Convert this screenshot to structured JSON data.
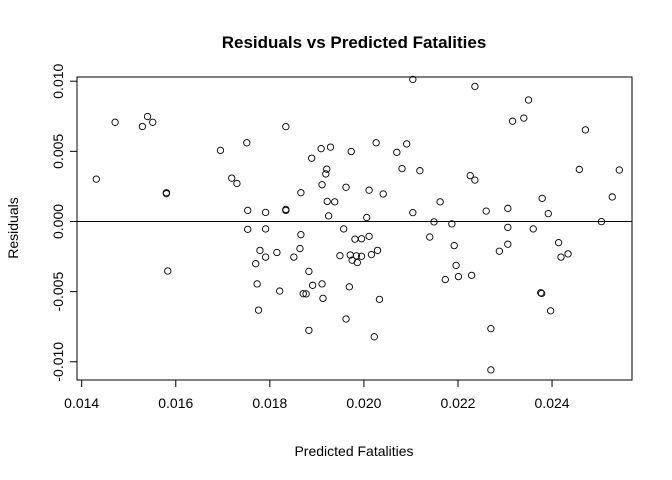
{
  "chart_data": {
    "type": "scatter",
    "title": "Residuals vs Predicted Fatalities",
    "xlabel": "Predicted Fatalities",
    "ylabel": "Residuals",
    "xlim": [
      0.0139,
      0.0257
    ],
    "ylim": [
      -0.0113,
      0.0103
    ],
    "xticks": [
      0.014,
      0.016,
      0.018,
      0.02,
      0.022,
      0.024
    ],
    "xtick_labels": [
      "0.014",
      "0.016",
      "0.018",
      "0.020",
      "0.022",
      "0.024"
    ],
    "yticks": [
      -0.01,
      -0.005,
      0,
      0.005,
      0.01
    ],
    "ytick_labels": [
      "-0.010",
      "-0.005",
      "0.000",
      "0.005",
      "0.010"
    ],
    "reference_line_y": 0,
    "grid": false,
    "point_color": "#000000",
    "points": [
      [
        0.01431,
        0.00302
      ],
      [
        0.01471,
        0.00707
      ],
      [
        0.01529,
        0.00677
      ],
      [
        0.0154,
        0.00748
      ],
      [
        0.01551,
        0.00707
      ],
      [
        0.0158,
        0.00198
      ],
      [
        0.0158,
        0.00205
      ],
      [
        0.01583,
        -0.00353
      ],
      [
        0.01695,
        0.00507
      ],
      [
        0.01719,
        0.00309
      ],
      [
        0.0173,
        0.00271
      ],
      [
        0.01751,
        0.00561
      ],
      [
        0.01753,
        0.00079
      ],
      [
        0.01753,
        -0.00056
      ],
      [
        0.0177,
        -0.00301
      ],
      [
        0.01773,
        -0.00445
      ],
      [
        0.01776,
        -0.00632
      ],
      [
        0.01779,
        -0.00206
      ],
      [
        0.01791,
        -0.00053
      ],
      [
        0.01791,
        0.00065
      ],
      [
        0.01791,
        -0.00254
      ],
      [
        0.01815,
        -0.00221
      ],
      [
        0.01821,
        -0.00496
      ],
      [
        0.01834,
        0.00676
      ],
      [
        0.01834,
        0.00079
      ],
      [
        0.01834,
        0.00086
      ],
      [
        0.01851,
        -0.00254
      ],
      [
        0.01864,
        -0.00193
      ],
      [
        0.01866,
        0.00205
      ],
      [
        0.01866,
        -0.00094
      ],
      [
        0.01871,
        -0.00515
      ],
      [
        0.01877,
        -0.00516
      ],
      [
        0.01883,
        -0.00776
      ],
      [
        0.01883,
        -0.00356
      ],
      [
        0.01889,
        0.00451
      ],
      [
        0.01891,
        -0.00455
      ],
      [
        0.01909,
        0.00519
      ],
      [
        0.01911,
        -0.00445
      ],
      [
        0.01911,
        0.00262
      ],
      [
        0.01913,
        -0.00548
      ],
      [
        0.01919,
        0.00339
      ],
      [
        0.01921,
        0.00373
      ],
      [
        0.01922,
        0.00143
      ],
      [
        0.01925,
        0.0004
      ],
      [
        0.01929,
        0.0053
      ],
      [
        0.01938,
        0.0014
      ],
      [
        0.01949,
        -0.00244
      ],
      [
        0.01957,
        -0.00053
      ],
      [
        0.01962,
        0.00244
      ],
      [
        0.01962,
        -0.00695
      ],
      [
        0.01969,
        -0.00466
      ],
      [
        0.01971,
        -0.00239
      ],
      [
        0.01973,
        0.00499
      ],
      [
        0.01975,
        -0.00276
      ],
      [
        0.01981,
        -0.00126
      ],
      [
        0.01984,
        -0.00245
      ],
      [
        0.01986,
        -0.00293
      ],
      [
        0.01995,
        -0.00123
      ],
      [
        0.01995,
        -0.00248
      ],
      [
        0.02006,
        0.00028
      ],
      [
        0.02011,
        0.00223
      ],
      [
        0.02011,
        -0.00106
      ],
      [
        0.02016,
        -0.00236
      ],
      [
        0.02022,
        -0.00822
      ],
      [
        0.02026,
        0.00561
      ],
      [
        0.02029,
        -0.00206
      ],
      [
        0.02033,
        -0.00555
      ],
      [
        0.02041,
        0.00196
      ],
      [
        0.0207,
        0.00493
      ],
      [
        0.02081,
        0.00377
      ],
      [
        0.02091,
        0.00553
      ],
      [
        0.02104,
        0.00063
      ],
      [
        0.02104,
        0.01013
      ],
      [
        0.02119,
        0.00362
      ],
      [
        0.0214,
        -0.00111
      ],
      [
        0.02149,
        -3e-05
      ],
      [
        0.02162,
        0.0014
      ],
      [
        0.02173,
        -0.00414
      ],
      [
        0.02187,
        -0.00017
      ],
      [
        0.02192,
        -0.00172
      ],
      [
        0.02196,
        -0.00313
      ],
      [
        0.02201,
        -0.00393
      ],
      [
        0.02226,
        0.00327
      ],
      [
        0.02229,
        -0.00384
      ],
      [
        0.02236,
        0.00295
      ],
      [
        0.02236,
        0.00963
      ],
      [
        0.0226,
        0.00074
      ],
      [
        0.0227,
        -0.00764
      ],
      [
        0.0227,
        -0.01058
      ],
      [
        0.02288,
        -0.00212
      ],
      [
        0.02306,
        0.00093
      ],
      [
        0.02306,
        -0.00042
      ],
      [
        0.02306,
        -0.00162
      ],
      [
        0.02316,
        0.00715
      ],
      [
        0.0234,
        0.00737
      ],
      [
        0.0235,
        0.00866
      ],
      [
        0.0236,
        -0.00053
      ],
      [
        0.02376,
        -0.00508
      ],
      [
        0.02378,
        -0.00513
      ],
      [
        0.02379,
        0.00165
      ],
      [
        0.02392,
        0.00056
      ],
      [
        0.02397,
        -0.00637
      ],
      [
        0.02414,
        -0.00151
      ],
      [
        0.02419,
        -0.00254
      ],
      [
        0.02434,
        -0.00231
      ],
      [
        0.02458,
        0.00371
      ],
      [
        0.02471,
        0.00653
      ],
      [
        0.02505,
        -1e-05
      ],
      [
        0.02528,
        0.00175
      ],
      [
        0.02543,
        0.00367
      ]
    ]
  }
}
